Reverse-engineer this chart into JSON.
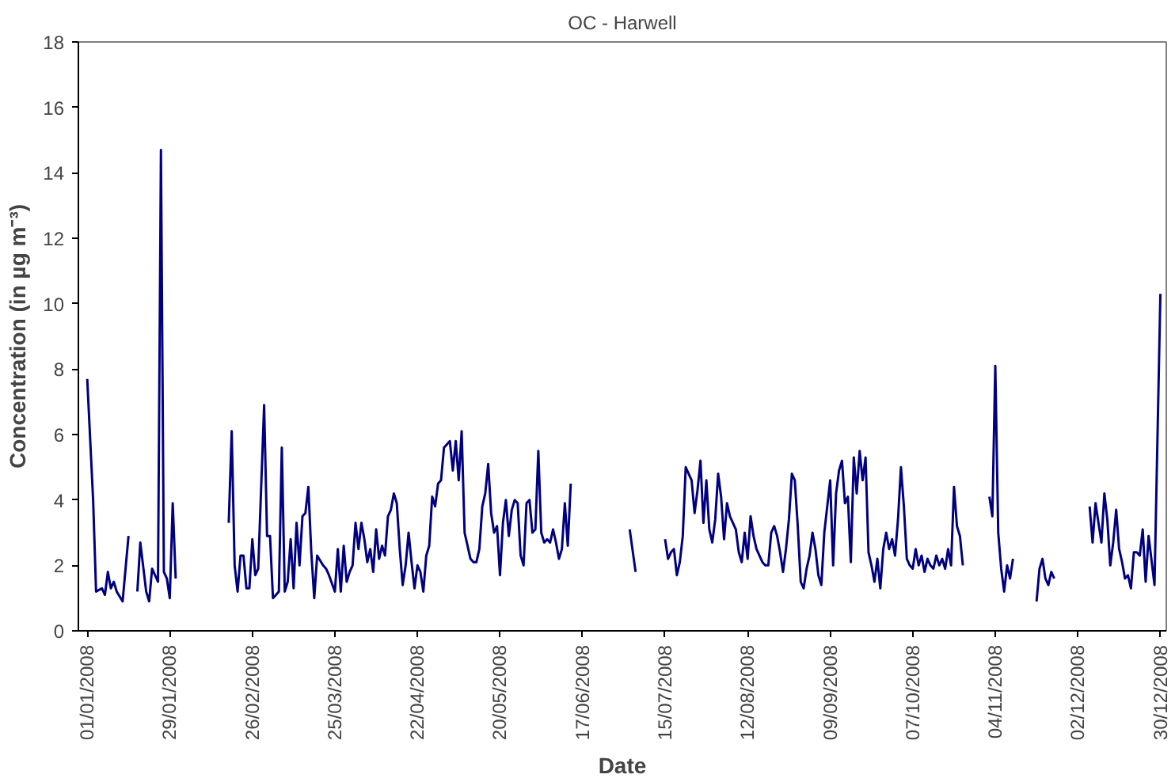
{
  "chart_data": {
    "type": "line",
    "title": "OC - Harwell",
    "xlabel": "Date",
    "ylabel": "Concentration (in µg m⁻³)",
    "xlim": [
      "2007-12-29",
      "2009-01-01"
    ],
    "xticks": [
      {
        "value": "2008-01-01",
        "label": "01/01/2008"
      },
      {
        "value": "2008-01-29",
        "label": "29/01/2008"
      },
      {
        "value": "2008-02-26",
        "label": "26/02/2008"
      },
      {
        "value": "2008-03-25",
        "label": "25/03/2008"
      },
      {
        "value": "2008-04-22",
        "label": "22/04/2008"
      },
      {
        "value": "2008-05-20",
        "label": "20/05/2008"
      },
      {
        "value": "2008-06-17",
        "label": "17/06/2008"
      },
      {
        "value": "2008-07-15",
        "label": "15/07/2008"
      },
      {
        "value": "2008-08-12",
        "label": "12/08/2008"
      },
      {
        "value": "2008-09-09",
        "label": "09/09/2008"
      },
      {
        "value": "2008-10-07",
        "label": "07/10/2008"
      },
      {
        "value": "2008-11-04",
        "label": "04/11/2008"
      },
      {
        "value": "2008-12-02",
        "label": "02/12/2008"
      },
      {
        "value": "2008-12-30",
        "label": "30/12/2008"
      }
    ],
    "ylim": [
      0,
      18
    ],
    "yticks": [
      0,
      2,
      4,
      6,
      8,
      10,
      12,
      14,
      16,
      18
    ],
    "grid": false,
    "marker": "none",
    "line_style": "solid",
    "series": [
      {
        "color": "#000080",
        "x": [
          "2008-01-01",
          "2008-01-03",
          "2008-01-04",
          "2008-01-06",
          "2008-01-07",
          "2008-01-08",
          "2008-01-09",
          "2008-01-10",
          "2008-01-11",
          "2008-01-13",
          "2008-01-15",
          "2008-01-16",
          "2008-01-18",
          "2008-01-19",
          "2008-01-21",
          "2008-01-22",
          "2008-01-23",
          "2008-01-25",
          "2008-01-26",
          "2008-01-27",
          "2008-01-28",
          "2008-01-29",
          "2008-01-30",
          "2008-01-31",
          "2008-02-01",
          "2008-02-18",
          "2008-02-19",
          "2008-02-20",
          "2008-02-21",
          "2008-02-22",
          "2008-02-23",
          "2008-02-24",
          "2008-02-25",
          "2008-02-26",
          "2008-02-27",
          "2008-02-28",
          "2008-03-01",
          "2008-03-02",
          "2008-03-03",
          "2008-03-04",
          "2008-03-06",
          "2008-03-07",
          "2008-03-08",
          "2008-03-09",
          "2008-03-10",
          "2008-03-11",
          "2008-03-12",
          "2008-03-13",
          "2008-03-14",
          "2008-03-15",
          "2008-03-16",
          "2008-03-17",
          "2008-03-18",
          "2008-03-19",
          "2008-03-21",
          "2008-03-22",
          "2008-03-23",
          "2008-03-25",
          "2008-03-26",
          "2008-03-27",
          "2008-03-28",
          "2008-03-29",
          "2008-03-30",
          "2008-03-31",
          "2008-04-01",
          "2008-04-02",
          "2008-04-03",
          "2008-04-04",
          "2008-04-05",
          "2008-04-06",
          "2008-04-07",
          "2008-04-08",
          "2008-04-09",
          "2008-04-10",
          "2008-04-11",
          "2008-04-12",
          "2008-04-13",
          "2008-04-14",
          "2008-04-15",
          "2008-04-16",
          "2008-04-17",
          "2008-04-18",
          "2008-04-19",
          "2008-04-20",
          "2008-04-21",
          "2008-04-22",
          "2008-04-23",
          "2008-04-24",
          "2008-04-25",
          "2008-04-26",
          "2008-04-27",
          "2008-04-28",
          "2008-04-29",
          "2008-04-30",
          "2008-05-01",
          "2008-05-02",
          "2008-05-03",
          "2008-05-04",
          "2008-05-05",
          "2008-05-06",
          "2008-05-07",
          "2008-05-08",
          "2008-05-10",
          "2008-05-11",
          "2008-05-12",
          "2008-05-13",
          "2008-05-14",
          "2008-05-15",
          "2008-05-16",
          "2008-05-17",
          "2008-05-18",
          "2008-05-19",
          "2008-05-20",
          "2008-05-21",
          "2008-05-22",
          "2008-05-23",
          "2008-05-24",
          "2008-05-25",
          "2008-05-26",
          "2008-05-27",
          "2008-05-28",
          "2008-05-29",
          "2008-05-30",
          "2008-05-31",
          "2008-06-01",
          "2008-06-02",
          "2008-06-03",
          "2008-06-04",
          "2008-06-05",
          "2008-06-06",
          "2008-06-07",
          "2008-06-08",
          "2008-06-09",
          "2008-06-10",
          "2008-06-11",
          "2008-06-12",
          "2008-06-13",
          "2008-06-14",
          "2008-07-03",
          "2008-07-05",
          "2008-07-06",
          "2008-07-15",
          "2008-07-16",
          "2008-07-17",
          "2008-07-18",
          "2008-07-19",
          "2008-07-20",
          "2008-07-21",
          "2008-07-22",
          "2008-07-23",
          "2008-07-24",
          "2008-07-25",
          "2008-07-26",
          "2008-07-27",
          "2008-07-28",
          "2008-07-29",
          "2008-07-30",
          "2008-07-31",
          "2008-08-01",
          "2008-08-02",
          "2008-08-03",
          "2008-08-04",
          "2008-08-05",
          "2008-08-06",
          "2008-08-07",
          "2008-08-08",
          "2008-08-09",
          "2008-08-10",
          "2008-08-11",
          "2008-08-12",
          "2008-08-13",
          "2008-08-14",
          "2008-08-15",
          "2008-08-16",
          "2008-08-17",
          "2008-08-18",
          "2008-08-19",
          "2008-08-20",
          "2008-08-21",
          "2008-08-22",
          "2008-08-23",
          "2008-08-24",
          "2008-08-25",
          "2008-08-26",
          "2008-08-27",
          "2008-08-28",
          "2008-08-29",
          "2008-08-30",
          "2008-08-31",
          "2008-09-01",
          "2008-09-02",
          "2008-09-03",
          "2008-09-04",
          "2008-09-05",
          "2008-09-06",
          "2008-09-07",
          "2008-09-08",
          "2008-09-09",
          "2008-09-10",
          "2008-09-11",
          "2008-09-12",
          "2008-09-13",
          "2008-09-14",
          "2008-09-15",
          "2008-09-16",
          "2008-09-17",
          "2008-09-18",
          "2008-09-19",
          "2008-09-20",
          "2008-09-21",
          "2008-09-22",
          "2008-09-23",
          "2008-09-24",
          "2008-09-25",
          "2008-09-26",
          "2008-09-27",
          "2008-09-28",
          "2008-09-29",
          "2008-09-30",
          "2008-10-01",
          "2008-10-02",
          "2008-10-03",
          "2008-10-04",
          "2008-10-05",
          "2008-10-06",
          "2008-10-07",
          "2008-10-08",
          "2008-10-09",
          "2008-10-10",
          "2008-10-11",
          "2008-10-12",
          "2008-10-13",
          "2008-10-14",
          "2008-10-15",
          "2008-10-16",
          "2008-10-17",
          "2008-10-18",
          "2008-10-19",
          "2008-10-20",
          "2008-10-21",
          "2008-10-22",
          "2008-10-23",
          "2008-10-24",
          "2008-10-25",
          "2008-11-02",
          "2008-11-03",
          "2008-11-04",
          "2008-11-05",
          "2008-11-06",
          "2008-11-07",
          "2008-11-08",
          "2008-11-09",
          "2008-11-10",
          "2008-11-11",
          "2008-11-18",
          "2008-11-19",
          "2008-11-20",
          "2008-11-21",
          "2008-11-22",
          "2008-11-23",
          "2008-11-24",
          "2008-11-25",
          "2008-12-06",
          "2008-12-07",
          "2008-12-08",
          "2008-12-09",
          "2008-12-10",
          "2008-12-11",
          "2008-12-12",
          "2008-12-13",
          "2008-12-14",
          "2008-12-15",
          "2008-12-16",
          "2008-12-17",
          "2008-12-18",
          "2008-12-19",
          "2008-12-20",
          "2008-12-21",
          "2008-12-22",
          "2008-12-23",
          "2008-12-24",
          "2008-12-25",
          "2008-12-26",
          "2008-12-28",
          "2008-12-30"
        ],
        "values": [
          7.7,
          4.0,
          1.2,
          1.3,
          1.1,
          1.8,
          1.3,
          1.5,
          1.2,
          0.9,
          2.9,
          null,
          1.2,
          2.7,
          1.2,
          0.9,
          1.9,
          1.5,
          14.7,
          1.8,
          1.6,
          1.0,
          3.9,
          1.6,
          null,
          3.3,
          6.1,
          2.0,
          1.2,
          2.3,
          2.3,
          1.3,
          1.3,
          2.8,
          1.7,
          1.9,
          6.9,
          2.9,
          2.9,
          1.0,
          1.2,
          5.6,
          1.2,
          1.5,
          2.8,
          1.3,
          3.3,
          2.0,
          3.5,
          3.6,
          4.4,
          2.4,
          1.0,
          2.3,
          2.0,
          1.9,
          1.7,
          1.2,
          2.5,
          1.2,
          2.6,
          1.5,
          1.8,
          2.0,
          3.3,
          2.5,
          3.3,
          2.8,
          2.1,
          2.5,
          1.8,
          3.1,
          2.2,
          2.6,
          2.3,
          3.5,
          3.7,
          4.2,
          3.9,
          2.5,
          1.4,
          2.0,
          3.0,
          2.1,
          1.3,
          2.0,
          1.8,
          1.2,
          2.3,
          2.6,
          4.1,
          3.8,
          4.5,
          4.6,
          5.6,
          5.7,
          5.8,
          4.9,
          5.8,
          4.6,
          6.1,
          3.0,
          2.2,
          2.1,
          2.1,
          2.5,
          3.8,
          4.2,
          5.1,
          3.6,
          3.0,
          3.2,
          1.7,
          3.3,
          4.0,
          2.9,
          3.7,
          4.0,
          3.9,
          2.3,
          2.0,
          3.9,
          4.0,
          3.0,
          3.1,
          5.5,
          3.0,
          2.7,
          2.8,
          2.7,
          3.1,
          2.7,
          2.2,
          2.5,
          3.9,
          2.6,
          4.5,
          null,
          3.1,
          1.8,
          null,
          2.8,
          2.2,
          2.4,
          2.5,
          1.7,
          2.1,
          2.9,
          5.0,
          4.8,
          4.6,
          3.6,
          4.3,
          5.2,
          3.3,
          4.6,
          3.1,
          2.7,
          3.4,
          4.8,
          4.1,
          2.8,
          3.9,
          3.5,
          3.3,
          3.1,
          2.4,
          2.1,
          3.0,
          2.2,
          3.5,
          2.9,
          2.5,
          2.3,
          2.1,
          2.0,
          2.0,
          3.0,
          3.2,
          2.9,
          2.4,
          1.8,
          2.5,
          3.4,
          4.8,
          4.6,
          3.2,
          1.5,
          1.3,
          1.9,
          2.3,
          3.0,
          2.5,
          1.7,
          1.4,
          3.0,
          3.8,
          4.6,
          2.0,
          4.2,
          4.9,
          5.2,
          3.9,
          4.1,
          2.1,
          5.3,
          4.2,
          5.5,
          4.6,
          5.3,
          2.4,
          2.0,
          1.5,
          2.2,
          1.3,
          2.5,
          3.0,
          2.5,
          2.8,
          2.3,
          3.4,
          5.0,
          3.8,
          2.2,
          2.0,
          1.9,
          2.5,
          2.0,
          2.3,
          1.8,
          2.2,
          2.0,
          1.9,
          2.3,
          2.0,
          2.2,
          1.9,
          2.5,
          2.0,
          4.4,
          3.2,
          2.9,
          2.0,
          null,
          4.1,
          3.5,
          8.1,
          3.0,
          1.9,
          1.2,
          2.0,
          1.6,
          2.2,
          null,
          0.9,
          1.9,
          2.2,
          1.6,
          1.4,
          1.8,
          1.6,
          null,
          3.8,
          2.7,
          3.9,
          3.3,
          2.7,
          4.2,
          3.4,
          2.0,
          2.7,
          3.7,
          2.5,
          2.1,
          1.6,
          1.7,
          1.3,
          2.4,
          2.4,
          2.3,
          3.1,
          1.5,
          2.9,
          1.4,
          10.3
        ]
      }
    ]
  }
}
